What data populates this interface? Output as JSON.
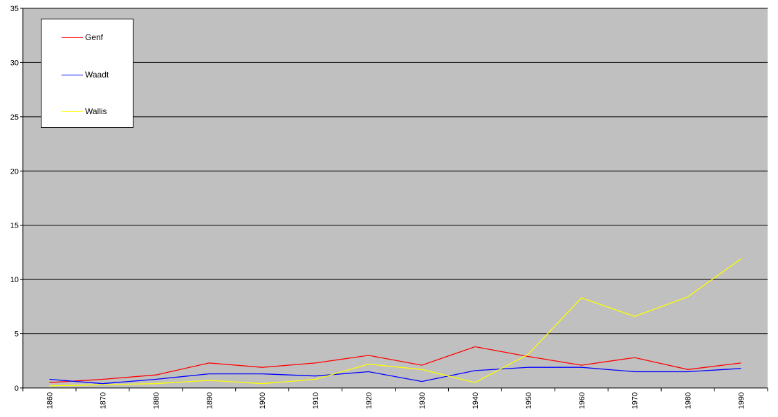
{
  "chart_data": {
    "type": "line",
    "title": "",
    "xlabel": "",
    "ylabel": "",
    "categories": [
      "1860",
      "1870",
      "1880",
      "1890",
      "1900",
      "1910",
      "1920",
      "1930",
      "1940",
      "1950",
      "1960",
      "1970",
      "1980",
      "1990"
    ],
    "ylim": [
      0,
      35
    ],
    "yticks": [
      0,
      5,
      10,
      15,
      20,
      25,
      30,
      35
    ],
    "grid": true,
    "legend_position": "top-left",
    "plot_background": "#c0c0c0",
    "series": [
      {
        "name": "Genf",
        "color": "#ff0000",
        "values": [
          0.5,
          0.8,
          1.2,
          2.3,
          1.9,
          2.3,
          3.0,
          2.1,
          3.8,
          2.9,
          2.1,
          2.8,
          1.7,
          2.3
        ]
      },
      {
        "name": "Waadt",
        "color": "#0000ff",
        "values": [
          0.8,
          0.4,
          0.8,
          1.3,
          1.3,
          1.1,
          1.5,
          0.6,
          1.6,
          1.9,
          1.9,
          1.5,
          1.5,
          1.8
        ]
      },
      {
        "name": "Wallis",
        "color": "#ffff00",
        "values": [
          0.2,
          0.3,
          0.4,
          0.7,
          0.4,
          0.8,
          2.2,
          1.7,
          0.5,
          3.1,
          8.3,
          6.6,
          8.4,
          11.9
        ]
      }
    ]
  }
}
